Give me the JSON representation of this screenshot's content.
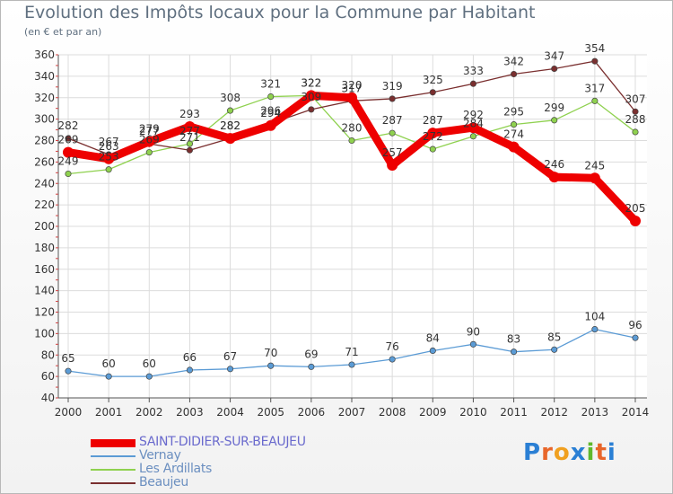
{
  "header": {
    "title": "Evolution des Impôts locaux pour la Commune par Habitant",
    "subtitle": "(en € et par an)"
  },
  "logo": {
    "text": "Proxiti",
    "letters": [
      "P",
      "r",
      "o",
      "x",
      "i",
      "t",
      "i"
    ],
    "colors": [
      "#2a7fd4",
      "#e8662a",
      "#f0a020",
      "#2a7fd4",
      "#5fb82c",
      "#e8662a",
      "#2a7fd4"
    ]
  },
  "chart_data": {
    "type": "line",
    "title": "Evolution des Impôts locaux pour la Commune par Habitant",
    "subtitle": "(en € et par an)",
    "xlabel": "",
    "ylabel": "",
    "x": [
      "2000",
      "2001",
      "2002",
      "2003",
      "2004",
      "2005",
      "2006",
      "2007",
      "2008",
      "2009",
      "2010",
      "2011",
      "2012",
      "2013",
      "2014"
    ],
    "ylim": [
      40,
      360
    ],
    "yticks": [
      40,
      60,
      80,
      100,
      120,
      140,
      160,
      180,
      200,
      220,
      240,
      260,
      280,
      300,
      320,
      340,
      360
    ],
    "grid": true,
    "legend_position": "bottom-left",
    "series": [
      {
        "name": "SAINT-DIDIER-SUR-BEAUJEU",
        "color": "#ee0000",
        "values": [
          269,
          263,
          279,
          293,
          282,
          294,
          322,
          320,
          257,
          287,
          292,
          274,
          246,
          245,
          205
        ]
      },
      {
        "name": "Vernay",
        "color": "#5b9bd5",
        "values": [
          65,
          60,
          60,
          66,
          67,
          70,
          69,
          71,
          76,
          84,
          90,
          83,
          85,
          104,
          96
        ]
      },
      {
        "name": "Les Ardillats",
        "color": "#8fd14f",
        "values": [
          249,
          253,
          269,
          277,
          308,
          321,
          322,
          280,
          287,
          272,
          284,
          295,
          299,
          317,
          288
        ]
      },
      {
        "name": "Beaujeu",
        "color": "#7a2f2f",
        "values": [
          282,
          267,
          277,
          271,
          282,
          296,
          309,
          317,
          319,
          325,
          333,
          342,
          347,
          354,
          307
        ]
      }
    ]
  }
}
